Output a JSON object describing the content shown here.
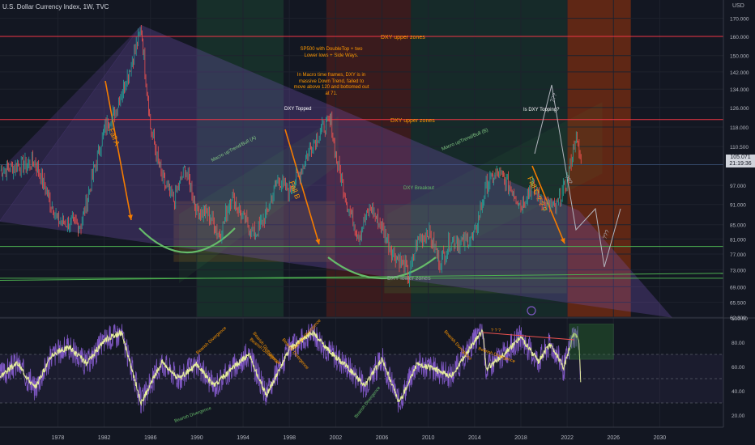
{
  "header": {
    "title": "U.S. Dollar Currency Index, 1W, TVC",
    "currency": "USD",
    "price_tag": "105.071",
    "countdown": "21:19:36"
  },
  "notes": {
    "top": "SP500 with DoubleTop + two Lower lows + Side Ways.",
    "macro": "In Macro time frames, DXY is in massive Down Trend, failed to move above 120 and bottomed out at 71."
  },
  "colors": {
    "background": "#131722",
    "price": "#26a69a",
    "price_down": "#ef5350",
    "rsi": "#7e57c2",
    "rsi_ma": "#e6ee9c",
    "annotation": "#ff9800",
    "channel": "#4caf50",
    "wedge": "#7e57c2",
    "resistance": "#f23645"
  },
  "chart_data": [
    {
      "type": "line",
      "title": "U.S. Dollar Currency Index, 1W, TVC",
      "x": [
        1973,
        1976,
        1978,
        1980,
        1981,
        1982,
        1983,
        1984,
        1985.2,
        1986,
        1987,
        1988,
        1989,
        1990,
        1991,
        1992,
        1993,
        1994,
        1995,
        1996,
        1997,
        1998,
        1999,
        2000,
        2001,
        2001.6,
        2002,
        2003,
        2004,
        2005,
        2006,
        2007,
        2008,
        2008.3,
        2009,
        2010,
        2011,
        2012,
        2013,
        2014,
        2015,
        2016,
        2017,
        2018,
        2019,
        2020,
        2021,
        2022,
        2022.7,
        2023.2
      ],
      "values": [
        102,
        105,
        86,
        85,
        100,
        117,
        125,
        140,
        164,
        118,
        99,
        92,
        103,
        89,
        88,
        82,
        94,
        87,
        82,
        88,
        99,
        95,
        102,
        112,
        118,
        120,
        107,
        91,
        82,
        90,
        84,
        77,
        74,
        71,
        80,
        83,
        75,
        81,
        80,
        82,
        97,
        101,
        97,
        91,
        97,
        91,
        90,
        98,
        114,
        105
      ],
      "xlim": [
        1973,
        2035.5
      ],
      "ylim": [
        62.3,
        175
      ],
      "log_scale": true,
      "y_ticks": [
        "170.000",
        "160.000",
        "150.000",
        "142.000",
        "134.000",
        "126.000",
        "118.000",
        "110.500",
        "104.000",
        "97.000",
        "91.000",
        "85.000",
        "81.000",
        "77.000",
        "73.000",
        "69.000",
        "65.500",
        "62.300"
      ],
      "x_ticks": [
        "1978",
        "1982",
        "1986",
        "1990",
        "1994",
        "1998",
        "2002",
        "2006",
        "2010",
        "2014",
        "2018",
        "2022",
        "2026",
        "2030"
      ],
      "levels": [
        {
          "label": "DXY upper zones",
          "value": 160
        },
        {
          "label": "DXY upper zones",
          "value": 121
        },
        {
          "label": "DXY lower zones",
          "value": 71
        }
      ],
      "annotations": [
        "Fall A",
        "Fall B",
        "Fall C ? ? ?",
        "DXY Topped",
        "Is DXY Topping?",
        "DXY Breakout",
        "Macro upTrend/Bull (A)",
        "Macro upTrend/Bull (B)",
        "???",
        "???",
        "???"
      ]
    },
    {
      "type": "line",
      "title": "",
      "series": [
        {
          "values": [
            52,
            63,
            42,
            70,
            76,
            62,
            82,
            88,
            30,
            64,
            50,
            62,
            44,
            58,
            70,
            36,
            74,
            88,
            72,
            60,
            44,
            66,
            30,
            62,
            58,
            52,
            74,
            58,
            70,
            90,
            84,
            64,
            78,
            72,
            58,
            86,
            84,
            42
          ]
        }
      ],
      "x": [
        1973,
        1974.5,
        1976,
        1977.5,
        1979,
        1980.5,
        1982,
        1983.5,
        1985.2,
        1987,
        1988.5,
        1990,
        1991.5,
        1993,
        1994.5,
        1996,
        1998,
        2000,
        2001.5,
        2003,
        2004.5,
        2006,
        2007.5,
        2009,
        2010.5,
        2012,
        2013.5,
        2015,
        2016.5,
        2014.7,
        2018,
        2019.5,
        2020.5,
        2021,
        2021.7,
        2022.5,
        2023,
        2023.2
      ],
      "ylim": [
        10,
        100
      ],
      "y_ticks": [
        "100.00",
        "80.00",
        "60.00",
        "40.00",
        "20.00"
      ],
      "annotations": [
        "Bearish Divergence",
        "Bearish Divergence",
        "Bearish Divergence",
        "Bearish Divergence",
        "Bearish Divergence",
        "Bearish Divergence",
        "Bearish Divergence",
        "Bearish Divergence",
        "Bearish Divergence",
        "? ? ?"
      ]
    }
  ]
}
